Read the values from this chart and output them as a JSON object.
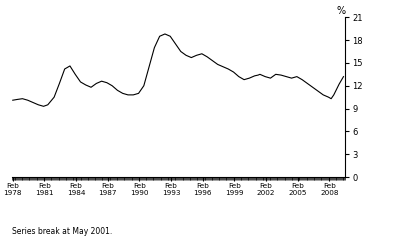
{
  "title": "",
  "ylabel": "%",
  "ylim": [
    0,
    21
  ],
  "yticks": [
    0,
    3,
    6,
    9,
    12,
    15,
    18,
    21
  ],
  "xtick_years": [
    1978,
    1981,
    1984,
    1987,
    1990,
    1993,
    1996,
    1999,
    2002,
    2005,
    2008
  ],
  "footnote": "Series break at May 2001.",
  "line_color": "#000000",
  "line_width": 0.8,
  "background_color": "#ffffff",
  "xlim": [
    1978.0,
    2009.6
  ],
  "data_points": [
    [
      1978.08,
      10.1
    ],
    [
      1978.5,
      10.2
    ],
    [
      1979.0,
      10.3
    ],
    [
      1979.5,
      10.1
    ],
    [
      1980.0,
      9.8
    ],
    [
      1980.5,
      9.5
    ],
    [
      1981.0,
      9.3
    ],
    [
      1981.4,
      9.5
    ],
    [
      1982.0,
      10.5
    ],
    [
      1982.5,
      12.3
    ],
    [
      1983.0,
      14.2
    ],
    [
      1983.5,
      14.6
    ],
    [
      1984.0,
      13.5
    ],
    [
      1984.5,
      12.5
    ],
    [
      1985.0,
      12.1
    ],
    [
      1985.5,
      11.8
    ],
    [
      1986.0,
      12.3
    ],
    [
      1986.5,
      12.6
    ],
    [
      1987.0,
      12.4
    ],
    [
      1987.5,
      12.0
    ],
    [
      1988.0,
      11.4
    ],
    [
      1988.5,
      11.0
    ],
    [
      1989.0,
      10.8
    ],
    [
      1989.5,
      10.8
    ],
    [
      1990.0,
      11.0
    ],
    [
      1990.5,
      12.0
    ],
    [
      1991.0,
      14.5
    ],
    [
      1991.5,
      17.0
    ],
    [
      1992.0,
      18.5
    ],
    [
      1992.5,
      18.8
    ],
    [
      1993.0,
      18.5
    ],
    [
      1993.5,
      17.5
    ],
    [
      1994.0,
      16.5
    ],
    [
      1994.5,
      16.0
    ],
    [
      1995.0,
      15.7
    ],
    [
      1995.5,
      16.0
    ],
    [
      1996.0,
      16.2
    ],
    [
      1996.5,
      15.8
    ],
    [
      1997.0,
      15.3
    ],
    [
      1997.5,
      14.8
    ],
    [
      1998.0,
      14.5
    ],
    [
      1998.5,
      14.2
    ],
    [
      1999.0,
      13.8
    ],
    [
      1999.5,
      13.2
    ],
    [
      2000.0,
      12.8
    ],
    [
      2000.5,
      13.0
    ],
    [
      2001.0,
      13.3
    ],
    [
      2001.33,
      13.4
    ],
    [
      2001.5,
      13.5
    ],
    [
      2002.0,
      13.2
    ],
    [
      2002.5,
      13.0
    ],
    [
      2003.0,
      13.5
    ],
    [
      2003.5,
      13.4
    ],
    [
      2004.0,
      13.2
    ],
    [
      2004.5,
      13.0
    ],
    [
      2005.0,
      13.2
    ],
    [
      2005.5,
      12.8
    ],
    [
      2006.0,
      12.3
    ],
    [
      2006.5,
      11.8
    ],
    [
      2007.0,
      11.3
    ],
    [
      2007.5,
      10.8
    ],
    [
      2008.0,
      10.5
    ],
    [
      2008.25,
      10.3
    ],
    [
      2008.5,
      10.8
    ],
    [
      2009.0,
      12.2
    ],
    [
      2009.42,
      13.2
    ]
  ]
}
